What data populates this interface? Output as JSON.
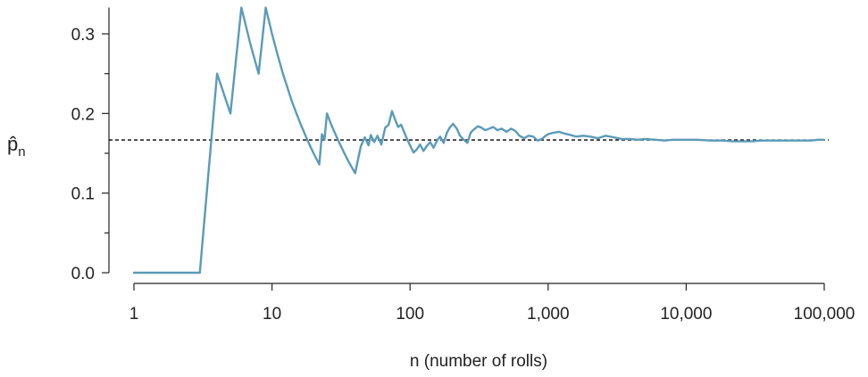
{
  "chart_data": {
    "type": "line",
    "xlabel": "n (number of rolls)",
    "ylabel": {
      "main": "p̂",
      "sub": "n"
    },
    "x_scale": "log",
    "xlim": [
      1,
      100000
    ],
    "ylim": [
      0,
      0.333
    ],
    "x_ticks": [
      {
        "value": 1,
        "label": "1"
      },
      {
        "value": 10,
        "label": "10"
      },
      {
        "value": 100,
        "label": "100"
      },
      {
        "value": 1000,
        "label": "1,000"
      },
      {
        "value": 10000,
        "label": "10,000"
      },
      {
        "value": 100000,
        "label": "100,000"
      }
    ],
    "y_ticks": [
      {
        "value": 0.0,
        "label": "0.0"
      },
      {
        "value": 0.1,
        "label": "0.1"
      },
      {
        "value": 0.2,
        "label": "0.2"
      },
      {
        "value": 0.3,
        "label": "0.3"
      }
    ],
    "y_minor_ticks": [
      0.05,
      0.15,
      0.25
    ],
    "reference_line": {
      "y": 0.1667,
      "style": "dashed",
      "color": "#000000"
    },
    "line_color": "#5b9bb8",
    "series": [
      {
        "x": [
          1,
          2,
          3,
          4,
          5,
          6,
          7,
          8,
          9,
          10,
          11,
          12,
          14,
          16,
          18,
          20,
          22,
          23,
          24,
          25,
          27,
          30,
          33,
          36,
          40,
          44,
          47,
          50,
          52,
          55,
          58,
          62,
          66,
          70,
          74,
          78,
          82,
          86,
          90,
          95,
          100,
          106,
          112,
          118,
          125,
          132,
          140,
          148,
          157,
          165,
          175,
          185,
          195,
          205,
          218,
          230,
          245,
          260,
          275,
          290,
          310,
          330,
          350,
          375,
          400,
          430,
          460,
          500,
          540,
          580,
          620,
          670,
          720,
          780,
          840,
          900,
          960,
          1000,
          1100,
          1200,
          1300,
          1450,
          1600,
          1800,
          2000,
          2300,
          2600,
          3000,
          3400,
          3900,
          4500,
          5000,
          6000,
          7000,
          8000,
          9000,
          10000,
          12000,
          15000,
          18000,
          22000,
          26000,
          30000,
          35000,
          40000,
          50000,
          60000,
          70000,
          80000,
          90000,
          100000
        ],
        "values": [
          0.0,
          0.0,
          0.0,
          0.25,
          0.2,
          0.333,
          0.286,
          0.25,
          0.333,
          0.3,
          0.273,
          0.25,
          0.214,
          0.188,
          0.167,
          0.15,
          0.136,
          0.174,
          0.167,
          0.2,
          0.185,
          0.167,
          0.152,
          0.139,
          0.125,
          0.159,
          0.17,
          0.16,
          0.173,
          0.164,
          0.172,
          0.161,
          0.182,
          0.186,
          0.203,
          0.192,
          0.183,
          0.186,
          0.178,
          0.168,
          0.16,
          0.151,
          0.155,
          0.161,
          0.153,
          0.159,
          0.164,
          0.157,
          0.166,
          0.171,
          0.163,
          0.176,
          0.183,
          0.187,
          0.181,
          0.172,
          0.167,
          0.163,
          0.176,
          0.18,
          0.184,
          0.182,
          0.179,
          0.181,
          0.183,
          0.179,
          0.181,
          0.177,
          0.181,
          0.178,
          0.172,
          0.169,
          0.172,
          0.171,
          0.166,
          0.168,
          0.172,
          0.174,
          0.176,
          0.177,
          0.175,
          0.173,
          0.171,
          0.172,
          0.171,
          0.169,
          0.172,
          0.17,
          0.168,
          0.168,
          0.167,
          0.168,
          0.167,
          0.166,
          0.167,
          0.167,
          0.167,
          0.167,
          0.166,
          0.166,
          0.165,
          0.165,
          0.165,
          0.166,
          0.166,
          0.166,
          0.166,
          0.166,
          0.166,
          0.167,
          0.167
        ]
      }
    ]
  }
}
